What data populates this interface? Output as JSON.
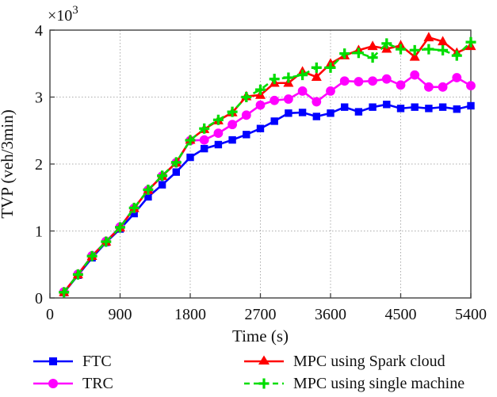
{
  "figure": {
    "background": "#ffffff",
    "axis_color": "#404040",
    "grid_color": "#ababab",
    "text_color": "#111111",
    "exponent": {
      "base": "×10",
      "power": "3"
    }
  },
  "chart_data": {
    "type": "line",
    "title": "",
    "xlabel": "Time (s)",
    "ylabel": "TVP (veh/3min)",
    "xlim": [
      0,
      5400
    ],
    "ylim": [
      0,
      4000
    ],
    "x_ticks": [
      0,
      900,
      1800,
      2700,
      3600,
      4500,
      5400
    ],
    "y_ticks": [
      0,
      1000,
      2000,
      3000,
      4000
    ],
    "y_tick_labels": [
      "0",
      "1",
      "2",
      "3",
      "4"
    ],
    "grid": "dotted",
    "legend_position": "below-two-columns",
    "x": [
      180,
      360,
      540,
      720,
      900,
      1080,
      1260,
      1440,
      1620,
      1800,
      1980,
      2160,
      2340,
      2520,
      2700,
      2880,
      3060,
      3240,
      3420,
      3600,
      3780,
      3960,
      4140,
      4320,
      4500,
      4680,
      4860,
      5040,
      5220,
      5400
    ],
    "series": [
      {
        "name": "FTC",
        "color": "#0000ff",
        "marker": "square",
        "line": "solid",
        "values": [
          80,
          340,
          600,
          830,
          1030,
          1260,
          1510,
          1690,
          1880,
          2100,
          2230,
          2290,
          2360,
          2440,
          2530,
          2640,
          2760,
          2770,
          2710,
          2760,
          2850,
          2780,
          2850,
          2890,
          2830,
          2850,
          2830,
          2850,
          2820,
          2870
        ]
      },
      {
        "name": "TRC",
        "color": "#ff00ff",
        "marker": "circle",
        "line": "solid",
        "values": [
          90,
          355,
          630,
          845,
          1060,
          1340,
          1610,
          1820,
          2020,
          2350,
          2360,
          2460,
          2590,
          2730,
          2880,
          2950,
          2970,
          3090,
          2930,
          3090,
          3240,
          3230,
          3240,
          3270,
          3180,
          3330,
          3150,
          3150,
          3290,
          3170
        ]
      },
      {
        "name": "MPC using Spark cloud",
        "color": "#ff0000",
        "marker": "triangle",
        "line": "solid",
        "values": [
          85,
          350,
          625,
          840,
          1050,
          1340,
          1610,
          1820,
          2020,
          2360,
          2520,
          2650,
          2770,
          3010,
          3030,
          3210,
          3210,
          3380,
          3300,
          3500,
          3620,
          3700,
          3760,
          3720,
          3770,
          3600,
          3890,
          3830,
          3660,
          3760
        ]
      },
      {
        "name": "MPC using single machine",
        "color": "#00dd00",
        "marker": "plus",
        "line": "dashed",
        "values": [
          85,
          350,
          625,
          840,
          1055,
          1345,
          1615,
          1825,
          2025,
          2355,
          2530,
          2660,
          2780,
          3000,
          3110,
          3270,
          3290,
          3330,
          3440,
          3440,
          3650,
          3660,
          3590,
          3800,
          3715,
          3700,
          3715,
          3700,
          3620,
          3820
        ]
      }
    ]
  }
}
